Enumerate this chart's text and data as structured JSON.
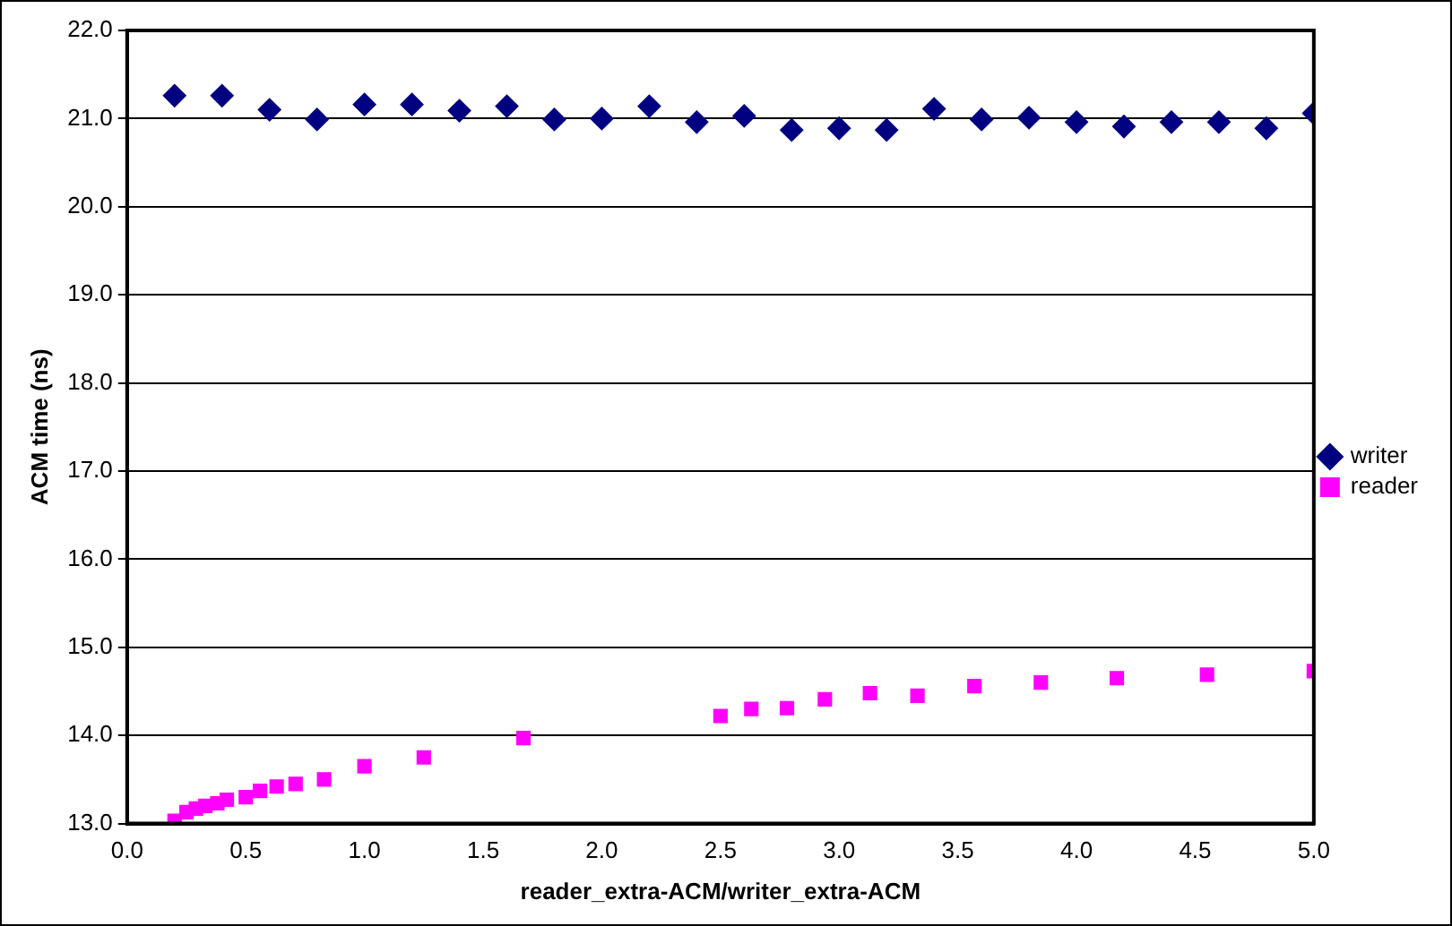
{
  "chart_data": {
    "type": "scatter",
    "xlabel": "reader_extra-ACM/writer_extra-ACM",
    "ylabel": "ACM time (ns)",
    "xlim": [
      0,
      5
    ],
    "xticks": [
      {
        "value": 0,
        "label": "0.0"
      },
      {
        "value": 0.5,
        "label": "0.5"
      },
      {
        "value": 1,
        "label": "1.0"
      },
      {
        "value": 1.5,
        "label": "1.5"
      },
      {
        "value": 2,
        "label": "2.0"
      },
      {
        "value": 2.5,
        "label": "2.5"
      },
      {
        "value": 3,
        "label": "3.0"
      },
      {
        "value": 3.5,
        "label": "3.5"
      },
      {
        "value": 4,
        "label": "4.0"
      },
      {
        "value": 4.5,
        "label": "4.5"
      },
      {
        "value": 5,
        "label": "5.0"
      }
    ],
    "ylim": [
      13,
      22
    ],
    "yticks": [
      {
        "value": 13,
        "label": "13.0"
      },
      {
        "value": 14,
        "label": "14.0"
      },
      {
        "value": 15,
        "label": "15.0"
      },
      {
        "value": 16,
        "label": "16.0"
      },
      {
        "value": 17,
        "label": "17.0"
      },
      {
        "value": 18,
        "label": "18.0"
      },
      {
        "value": 19,
        "label": "19.0"
      },
      {
        "value": 20,
        "label": "20.0"
      },
      {
        "value": 21,
        "label": "21.0"
      },
      {
        "value": 22,
        "label": "22.0"
      }
    ],
    "grid": "y",
    "legend": "right",
    "series": [
      {
        "name": "writer",
        "color": "#000080",
        "marker": "diamond",
        "x": [
          0.2,
          0.4,
          0.6,
          0.8,
          1.0,
          1.2,
          1.4,
          1.6,
          1.8,
          2.0,
          2.2,
          2.4,
          2.6,
          2.8,
          3.0,
          3.2,
          3.4,
          3.6,
          3.8,
          4.0,
          4.2,
          4.4,
          4.6,
          4.8,
          5.0
        ],
        "values": [
          21.26,
          21.26,
          21.1,
          20.99,
          21.16,
          21.16,
          21.09,
          21.14,
          20.99,
          21.0,
          21.14,
          20.96,
          21.03,
          20.87,
          20.89,
          20.87,
          21.11,
          20.99,
          21.01,
          20.96,
          20.91,
          20.96,
          20.96,
          20.89,
          21.06
        ]
      },
      {
        "name": "reader",
        "color": "#ff00ff",
        "marker": "square",
        "x": [
          0.2,
          0.25,
          0.29,
          0.33,
          0.38,
          0.42,
          0.5,
          0.56,
          0.63,
          0.71,
          0.83,
          1.0,
          1.25,
          1.67,
          2.5,
          2.63,
          2.78,
          2.94,
          3.13,
          3.33,
          3.57,
          3.85,
          4.17,
          4.55,
          5.0
        ],
        "values": [
          13.03,
          13.13,
          13.17,
          13.2,
          13.23,
          13.27,
          13.3,
          13.37,
          13.42,
          13.45,
          13.5,
          13.65,
          13.75,
          13.97,
          14.22,
          14.3,
          14.31,
          14.41,
          14.48,
          14.45,
          14.56,
          14.6,
          14.65,
          14.69,
          14.73
        ]
      }
    ]
  }
}
